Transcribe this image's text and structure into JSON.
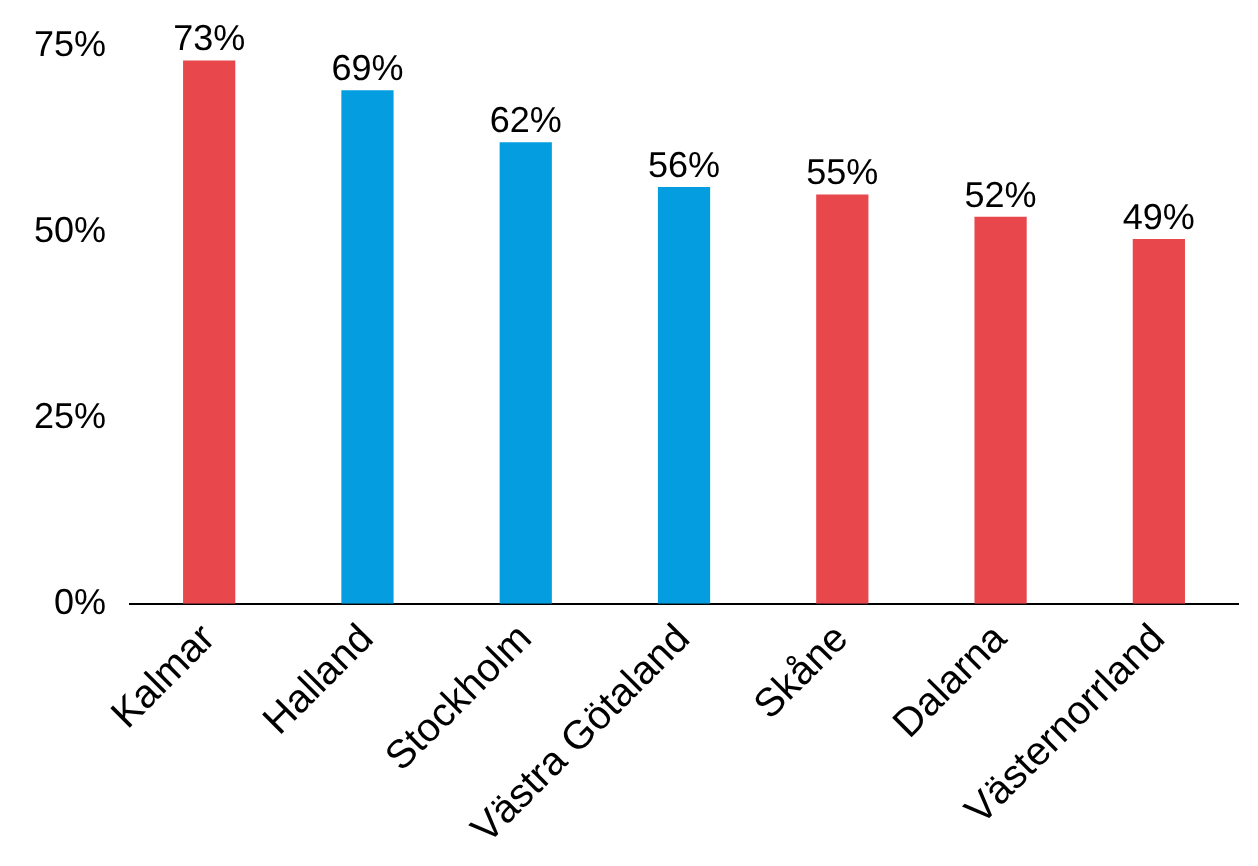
{
  "chart_data": {
    "type": "bar",
    "categories": [
      "Kalmar",
      "Halland",
      "Stockholm",
      "Västra Götaland",
      "Skåne",
      "Dalarna",
      "Västernorrland"
    ],
    "values": [
      73,
      69,
      62,
      56,
      55,
      52,
      49
    ],
    "colors": [
      "#e8474c",
      "#049ee0",
      "#049ee0",
      "#049ee0",
      "#e8474c",
      "#e8474c",
      "#e8474c"
    ],
    "value_labels": [
      "73%",
      "69%",
      "62%",
      "56%",
      "55%",
      "52%",
      "49%"
    ],
    "ylim": [
      0,
      75
    ],
    "yticks": [
      {
        "value": 0,
        "label": "0%"
      },
      {
        "value": 25,
        "label": "25%"
      },
      {
        "value": 50,
        "label": "50%"
      },
      {
        "value": 75,
        "label": "75%"
      }
    ],
    "grid": false,
    "legend": false
  }
}
